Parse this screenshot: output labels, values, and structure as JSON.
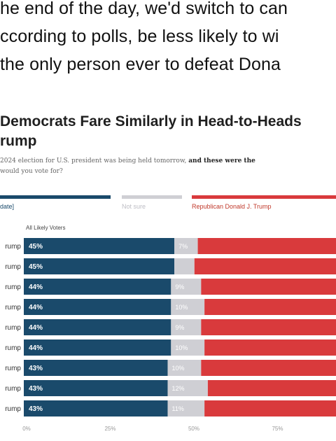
{
  "article": {
    "line1": "he end of the day, we'd switch to can",
    "line2": "ccording to polls, be less likely to wi",
    "line3": "the only person ever to defeat Dona"
  },
  "chart_data": {
    "type": "bar",
    "orientation": "horizontal",
    "stacked": true,
    "title_line1": "Democrats Fare Similarly in Head-to-Heads",
    "title_line2": "rump",
    "subtitle_line1": "2024 election for U.S. president was being held tomorrow,",
    "subtitle_line1_bold": "and these were the",
    "subtitle_line2": "would you vote for?",
    "group_label": "All Likely Voters",
    "legend": [
      {
        "label": "date]",
        "color": "#1a4a6b"
      },
      {
        "label": "Not sure",
        "color": "#cfcfd4"
      },
      {
        "label": "Republican Donald J. Trump",
        "color": "#d93a3c"
      }
    ],
    "categories": [
      "rump",
      "rump",
      "rump",
      "rump",
      "rump",
      "rump",
      "rump",
      "rump",
      "rump"
    ],
    "series": [
      {
        "name": "date]",
        "color": "#1a4a6b",
        "values": [
          45,
          45,
          44,
          44,
          44,
          44,
          43,
          43,
          43
        ]
      },
      {
        "name": "Not sure",
        "color": "#cfcfd4",
        "values": [
          7,
          6,
          9,
          10,
          9,
          10,
          10,
          12,
          11
        ]
      },
      {
        "name": "Republican Donald J. Trump",
        "color": "#d93a3c",
        "values": [
          48,
          49,
          47,
          46,
          47,
          46,
          47,
          45,
          46
        ]
      }
    ],
    "data_labels": {
      "dem": [
        "45%",
        "45%",
        "44%",
        "44%",
        "44%",
        "44%",
        "43%",
        "43%",
        "43%"
      ],
      "not_sure": [
        "7%",
        "",
        "9%",
        "10%",
        "9%",
        "10%",
        "10%",
        "12%",
        "11%"
      ]
    },
    "x_ticks": [
      "0%",
      "25%",
      "50%",
      "75%"
    ],
    "x_tick_values": [
      0,
      25,
      50,
      75
    ],
    "xlim": [
      0,
      100
    ]
  }
}
